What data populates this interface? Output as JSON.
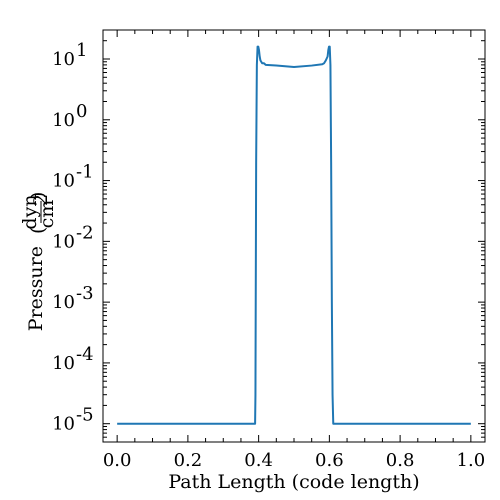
{
  "chart_data": {
    "type": "line",
    "xlabel": "Path Length  (code length)",
    "ylabel_prefix": "Pressure",
    "ylabel_unit_numerator": "dyn",
    "ylabel_unit_denominator": "cm",
    "ylabel_unit_denominator_exponent": "2",
    "xlim": [
      -0.04,
      1.04
    ],
    "ylim": [
      5e-06,
      30
    ],
    "y_scale": "log",
    "x_ticks": [
      "0.0",
      "0.2",
      "0.4",
      "0.6",
      "0.8",
      "1.0"
    ],
    "x_tick_values": [
      0.0,
      0.2,
      0.4,
      0.6,
      0.8,
      1.0
    ],
    "y_tick_exponents": [
      "1",
      "0",
      "-1",
      "-2",
      "-3",
      "-4",
      "-5"
    ],
    "y_tick_values": [
      10,
      1,
      0.1,
      0.01,
      0.001,
      0.0001,
      1e-05
    ],
    "grid": false,
    "line_color": "#1f77b4",
    "series": [
      {
        "x": [
          0.0,
          0.39,
          0.391,
          0.393,
          0.395,
          0.397,
          0.399,
          0.401,
          0.403,
          0.405,
          0.41,
          0.415,
          0.42,
          0.45,
          0.5,
          0.55,
          0.58,
          0.585,
          0.59,
          0.595,
          0.597,
          0.599,
          0.601,
          0.603,
          0.605,
          0.607,
          0.609,
          0.611,
          1.0
        ],
        "y": [
          1e-05,
          1e-05,
          3e-05,
          0.2,
          8,
          16,
          16,
          14,
          11,
          9.5,
          8.5,
          8.5,
          8,
          7.8,
          7.4,
          7.8,
          8.2,
          8.5,
          9.5,
          11,
          14,
          16,
          16,
          8,
          0.2,
          0.001,
          3e-05,
          1e-05,
          1e-05
        ]
      }
    ]
  }
}
